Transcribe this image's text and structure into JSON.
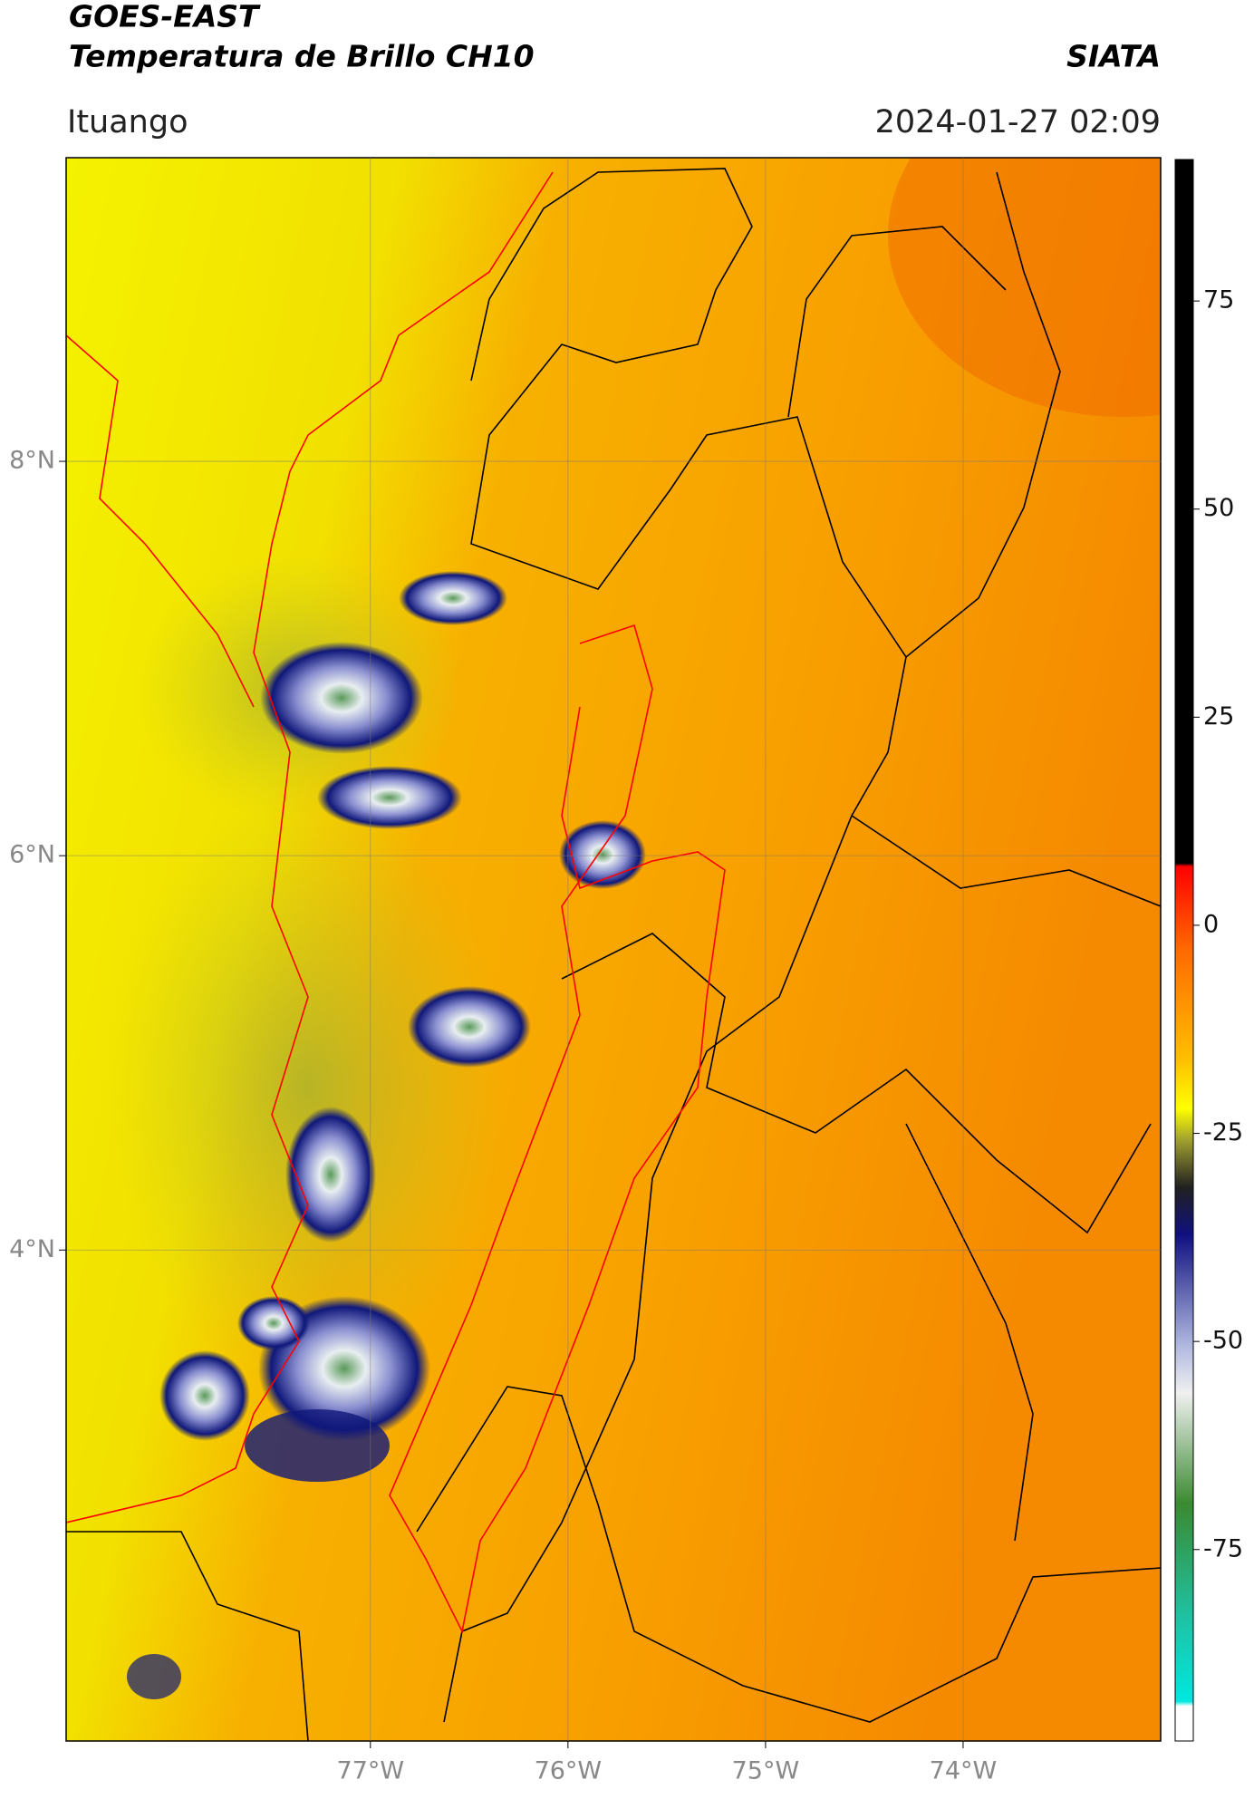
{
  "map": {
    "title": "GOES-EAST",
    "subtitle": "Temperatura de Brillo CH10",
    "source": "SIATA",
    "location": "Ituango",
    "datetime": "2024-01-27 02:09",
    "xlim": [
      -78.54,
      -73.0
    ],
    "ylim": [
      1.51,
      9.54
    ],
    "xticks": [
      {
        "value": -77,
        "label": "77°W"
      },
      {
        "value": -76,
        "label": "76°W"
      },
      {
        "value": -75,
        "label": "75°W"
      },
      {
        "value": -74,
        "label": "74°W"
      }
    ],
    "yticks": [
      {
        "value": 8,
        "label": "8°N"
      },
      {
        "value": 6,
        "label": "6°N"
      },
      {
        "value": 4,
        "label": "4°N"
      }
    ],
    "grid": true,
    "colorbar": {
      "ylim": [
        -98,
        92
      ],
      "yticks": [
        75,
        50,
        25,
        0,
        -25,
        -50,
        -75
      ]
    }
  }
}
